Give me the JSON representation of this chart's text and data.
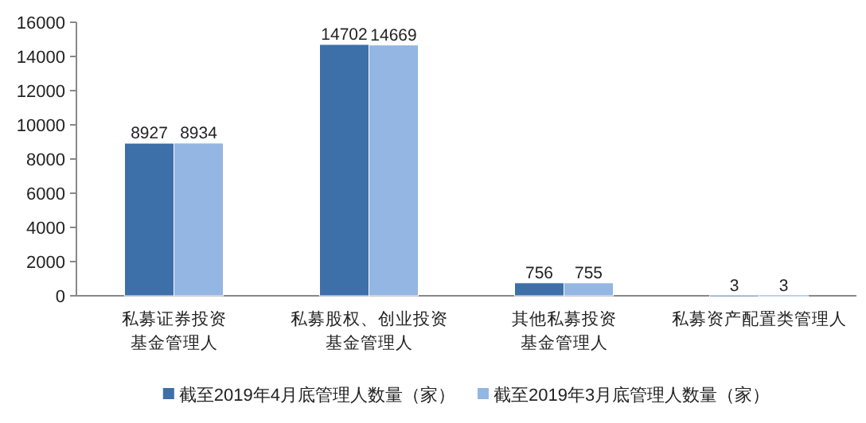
{
  "chart_data": {
    "type": "bar",
    "categories": [
      "私募证券投资基金管理人",
      "私募股权、创业投资基金管理人",
      "其他私募投资基金管理人",
      "私募资产配置类管理人"
    ],
    "series": [
      {
        "name": "截至2019年4月底管理人数量（家）",
        "color": "#3d6fa8",
        "values": [
          8927,
          14702,
          756,
          3
        ]
      },
      {
        "name": "截至2019年3月底管理人数量（家）",
        "color": "#93b6e3",
        "values": [
          8934,
          14669,
          755,
          3
        ]
      }
    ],
    "ylim": [
      0,
      16000
    ],
    "yticks": [
      0,
      2000,
      4000,
      6000,
      8000,
      10000,
      12000,
      14000,
      16000
    ],
    "data_labels": true,
    "legend": "bottom",
    "grid": false
  }
}
